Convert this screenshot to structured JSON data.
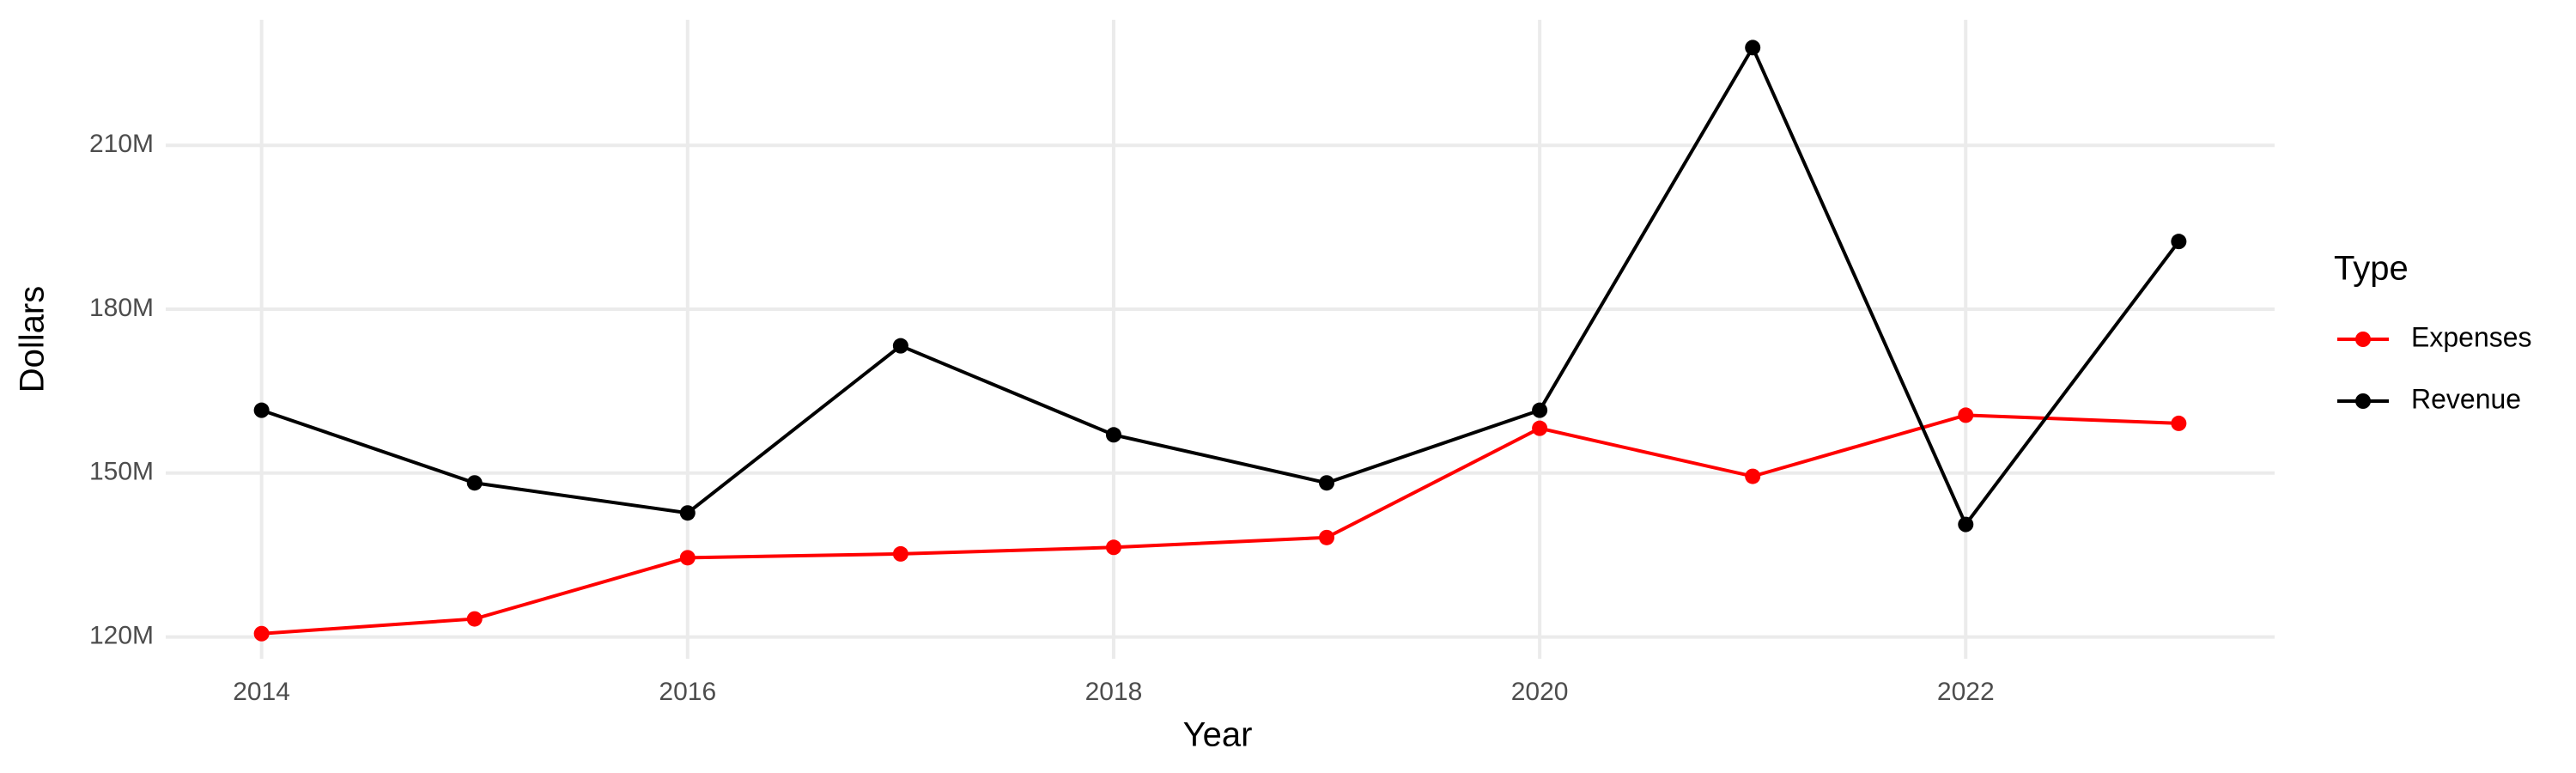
{
  "chart_data": {
    "type": "line",
    "x_label": "Year",
    "y_label": "Dollars",
    "x": [
      2014,
      2015,
      2016,
      2017,
      2018,
      2019,
      2020,
      2021,
      2022,
      2023
    ],
    "series": [
      {
        "name": "Expenses",
        "color": "#ff0000",
        "values": [
          120600000,
          123300000,
          134500000,
          135200000,
          136400000,
          138200000,
          158200000,
          149400000,
          160600000,
          159100000
        ]
      },
      {
        "name": "Revenue",
        "color": "#000000",
        "values": [
          161500000,
          148200000,
          142700000,
          173300000,
          157000000,
          148200000,
          161500000,
          227900000,
          140600000,
          192400000
        ]
      }
    ],
    "xlim": [
      2013.55,
      2023.45
    ],
    "xticks": [
      2014,
      2016,
      2018,
      2020,
      2022
    ],
    "ylim": [
      116000000,
      233000000
    ],
    "yticks": [
      {
        "value": 120000000,
        "label": "120M"
      },
      {
        "value": 150000000,
        "label": "150M"
      },
      {
        "value": 180000000,
        "label": "180M"
      },
      {
        "value": 210000000,
        "label": "210M"
      }
    ],
    "legend_title": "Type",
    "legend_position": "right",
    "grid": true
  }
}
